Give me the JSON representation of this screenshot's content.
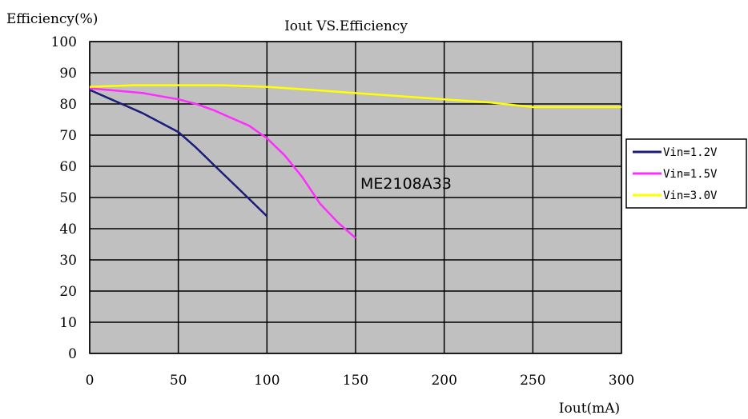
{
  "chart_data": {
    "type": "line",
    "title": "Iout VS.Efficiency",
    "xlabel": "Iout(mA)",
    "ylabel": "Efficiency(%)",
    "annotation": "ME2108A33",
    "xlim": [
      0,
      300
    ],
    "ylim": [
      0,
      100
    ],
    "xticks": [
      0,
      50,
      100,
      150,
      200,
      250,
      300
    ],
    "yticks": [
      0,
      10,
      20,
      30,
      40,
      50,
      60,
      70,
      80,
      90,
      100
    ],
    "grid": true,
    "plot_background": "#c0c0c0",
    "legend": {
      "placement": "right"
    },
    "series": [
      {
        "name": "Vin=1.2V",
        "color": "#1c1c7a",
        "x": [
          0,
          10,
          20,
          30,
          40,
          50,
          60,
          70,
          80,
          90,
          100
        ],
        "y": [
          84.5,
          82,
          79.5,
          77,
          74,
          71,
          66,
          60.5,
          55,
          49.5,
          44
        ]
      },
      {
        "name": "Vin=1.5V",
        "color": "#ff2cff",
        "x": [
          0,
          10,
          20,
          30,
          40,
          50,
          60,
          70,
          80,
          90,
          100,
          110,
          120,
          130,
          140,
          150
        ],
        "y": [
          85,
          84.5,
          84,
          83.5,
          82.5,
          81.5,
          80,
          78,
          75.5,
          73,
          69,
          63.5,
          56.5,
          48,
          42,
          37
        ]
      },
      {
        "name": "Vin=3.0V",
        "color": "#ffff00",
        "x": [
          0,
          25,
          50,
          75,
          100,
          125,
          150,
          175,
          200,
          225,
          250,
          275,
          300
        ],
        "y": [
          85.5,
          86,
          86,
          86,
          85.5,
          84.5,
          83.5,
          82.5,
          81.5,
          80.5,
          79,
          79,
          79
        ]
      }
    ]
  }
}
